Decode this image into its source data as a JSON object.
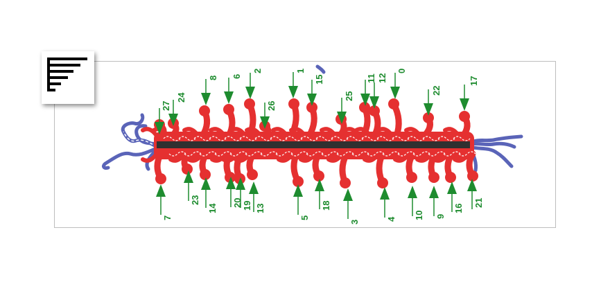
{
  "menu_button": {
    "icon": "hamburger-menu-icon"
  },
  "colors": {
    "neurite": "#e53030",
    "axon": "#5a64b8",
    "arrow": "#1e8c2f",
    "label": "#1e8c2f",
    "shaft": "#303030",
    "frame": "#bdbdbd"
  },
  "markers": {
    "top": [
      "27",
      "24",
      "8",
      "6",
      "2",
      "26",
      "1",
      "15",
      "25",
      "11",
      "12",
      "0",
      "22",
      "17"
    ],
    "bottom": [
      "7",
      "23",
      "14",
      "20",
      "19",
      "13",
      "5",
      "18",
      "3",
      "4",
      "10",
      "9",
      "16",
      "21"
    ]
  }
}
